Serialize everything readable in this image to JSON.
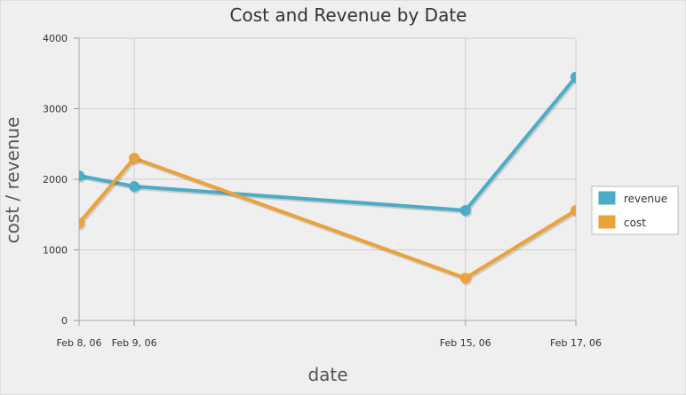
{
  "chart_data": {
    "type": "line",
    "title": "Cost and Revenue by Date",
    "xlabel": "date",
    "ylabel": "cost / revenue",
    "x": [
      "2006-02-08",
      "2006-02-09",
      "2006-02-15",
      "2006-02-17"
    ],
    "x_tick_labels": [
      "Feb 8, 06",
      "Feb 9, 06",
      "Feb 15, 06",
      "Feb 17, 06"
    ],
    "xlim": [
      "2006-02-08",
      "2006-02-17"
    ],
    "ylim": [
      0,
      4000
    ],
    "y_ticks": [
      0,
      1000,
      2000,
      3000,
      4000
    ],
    "y_tick_labels": [
      "0",
      "1000",
      "2000",
      "3000",
      "4000"
    ],
    "grid": true,
    "legend_position": "right",
    "series": [
      {
        "name": "revenue",
        "color": "#4bacc6",
        "values": [
          2050,
          1900,
          1560,
          3450
        ]
      },
      {
        "name": "cost",
        "color": "#eba23a",
        "values": [
          1380,
          2300,
          600,
          1560
        ]
      }
    ]
  }
}
